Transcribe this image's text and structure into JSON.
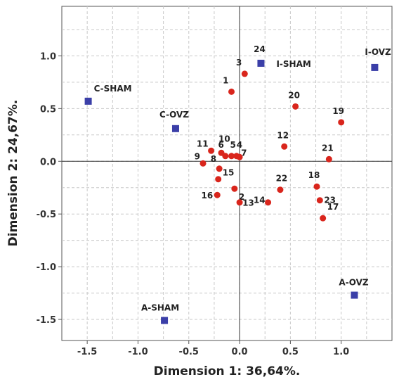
{
  "chart_data": {
    "type": "scatter",
    "xlabel": "Dimension 1: 36,64%.",
    "ylabel": "Dimension 2: 24,67%.",
    "xlim": [
      -1.75,
      1.5
    ],
    "ylim": [
      -1.7,
      1.47
    ],
    "xticks": [
      -1.5,
      -1.0,
      -0.5,
      0.0,
      0.5,
      1.0
    ],
    "xtick_labels": [
      "-1.5",
      "-1.0",
      "-0.5",
      "0.0",
      "0.5",
      "1.0"
    ],
    "yticks": [
      -1.5,
      -1.0,
      -0.5,
      0.0,
      0.5,
      1.0
    ],
    "ytick_labels": [
      "-1.5",
      "-1.0",
      "-0.5",
      "0.0",
      "0.5",
      "1.0"
    ],
    "grid": true,
    "colors": {
      "points": "#d9251c",
      "squares": "#3b3fa8",
      "grid": "#c8c8c8",
      "axis": "#333333"
    },
    "points": [
      {
        "label": "1",
        "x": -0.08,
        "y": 0.66
      },
      {
        "label": "2",
        "x": -0.05,
        "y": -0.26
      },
      {
        "label": "3",
        "x": 0.05,
        "y": 0.83
      },
      {
        "label": "4",
        "x": -0.03,
        "y": 0.05
      },
      {
        "label": "5",
        "x": -0.08,
        "y": 0.05
      },
      {
        "label": "6",
        "x": -0.14,
        "y": 0.05
      },
      {
        "label": "7",
        "x": 0.0,
        "y": 0.04
      },
      {
        "label": "8",
        "x": -0.2,
        "y": -0.07
      },
      {
        "label": "9",
        "x": -0.36,
        "y": -0.02
      },
      {
        "label": "10",
        "x": -0.18,
        "y": 0.08
      },
      {
        "label": "11",
        "x": -0.28,
        "y": 0.1
      },
      {
        "label": "12",
        "x": 0.44,
        "y": 0.14
      },
      {
        "label": "13",
        "x": 0.0,
        "y": -0.39
      },
      {
        "label": "14",
        "x": 0.28,
        "y": -0.39
      },
      {
        "label": "15",
        "x": -0.21,
        "y": -0.17
      },
      {
        "label": "16",
        "x": -0.22,
        "y": -0.32
      },
      {
        "label": "17",
        "x": 0.82,
        "y": -0.54
      },
      {
        "label": "18",
        "x": 0.76,
        "y": -0.24
      },
      {
        "label": "19",
        "x": 1.0,
        "y": 0.37
      },
      {
        "label": "20",
        "x": 0.55,
        "y": 0.52
      },
      {
        "label": "21",
        "x": 0.88,
        "y": 0.02
      },
      {
        "label": "22",
        "x": 0.4,
        "y": -0.27
      },
      {
        "label": "23",
        "x": 0.79,
        "y": -0.37
      }
    ],
    "squares": [
      {
        "label": "C-SHAM",
        "x": -1.49,
        "y": 0.57
      },
      {
        "label": "C-OVZ",
        "x": -0.63,
        "y": 0.31
      },
      {
        "label": "24",
        "x": 0.21,
        "y": 0.93
      },
      {
        "label": "I-SHAM",
        "x": 0.21,
        "y": 0.93
      },
      {
        "label": "I-OVZ",
        "x": 1.33,
        "y": 0.89
      },
      {
        "label": "A-OVZ",
        "x": 1.13,
        "y": -1.27
      },
      {
        "label": "A-SHAM",
        "x": -0.74,
        "y": -1.51
      }
    ]
  }
}
